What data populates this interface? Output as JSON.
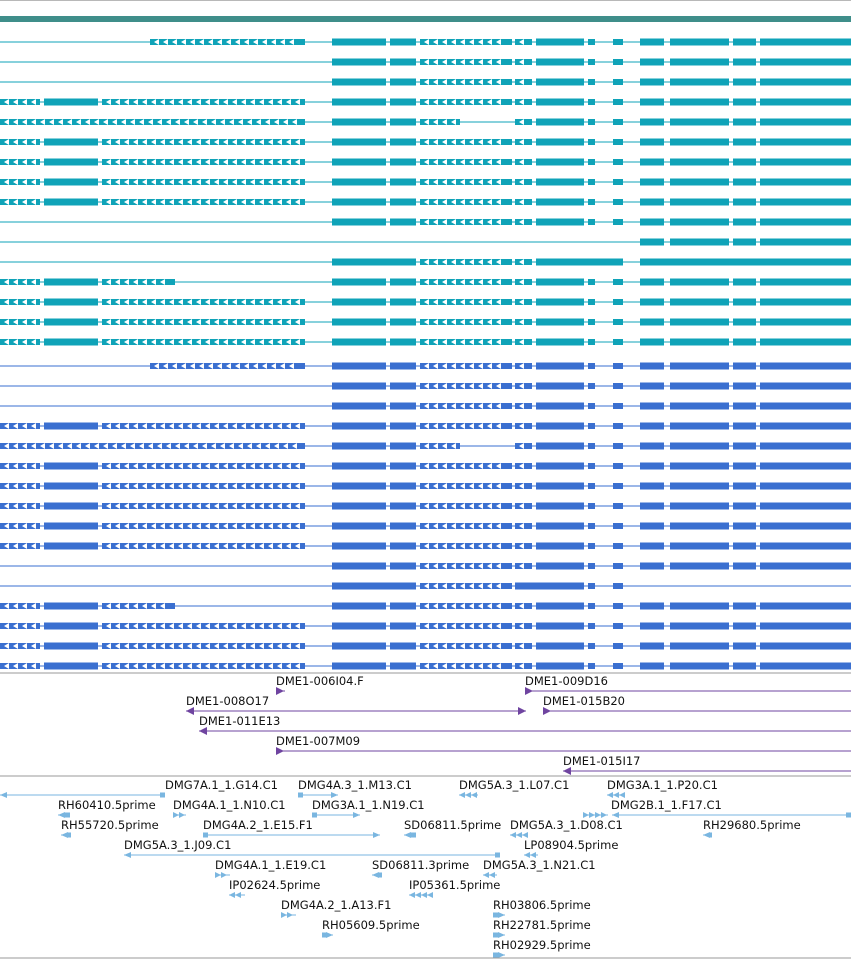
{
  "colors": {
    "header_bar": "#3f8e8a",
    "track_a": "#0fa3b8",
    "track_b": "#3a6fd0",
    "clone": "#6f44a0",
    "est": "#7ab6e0",
    "separator": "#9a9a9a"
  },
  "clones": [
    {
      "label": "DME1-006I04.F"
    },
    {
      "label": "DME1-009D16"
    },
    {
      "label": "DME1-008O17"
    },
    {
      "label": "DME1-015B20"
    },
    {
      "label": "DME1-011E13"
    },
    {
      "label": "DME1-007M09"
    },
    {
      "label": "DME1-015I17"
    }
  ],
  "ests": [
    {
      "label": "DMG7A.1_1.G14.C1"
    },
    {
      "label": "DMG4A.3_1.M13.C1"
    },
    {
      "label": "DMG5A.3_1.L07.C1"
    },
    {
      "label": "DMG3A.1_1.P20.C1"
    },
    {
      "label": "RH60410.5prime"
    },
    {
      "label": "DMG4A.1_1.N10.C1"
    },
    {
      "label": "DMG3A.1_1.N19.C1"
    },
    {
      "label": "DMG2B.1_1.F17.C1"
    },
    {
      "label": "RH55720.5prime"
    },
    {
      "label": "DMG4A.2_1.E15.F1"
    },
    {
      "label": "SD06811.5prime"
    },
    {
      "label": "DMG5A.3_1.D08.C1"
    },
    {
      "label": "RH29680.5prime"
    },
    {
      "label": "DMG5A.3_1.J09.C1"
    },
    {
      "label": "LP08904.5prime"
    },
    {
      "label": "DMG4A.1_1.E19.C1"
    },
    {
      "label": "SD06811.3prime"
    },
    {
      "label": "DMG5A.3_1.N21.C1"
    },
    {
      "label": "IP02624.5prime"
    },
    {
      "label": "IP05361.5prime"
    },
    {
      "label": "DMG4A.2_1.A13.F1"
    },
    {
      "label": "RH03806.5prime"
    },
    {
      "label": "RH05609.5prime"
    },
    {
      "label": "RH22781.5prime"
    },
    {
      "label": "RH02929.5prime"
    }
  ]
}
